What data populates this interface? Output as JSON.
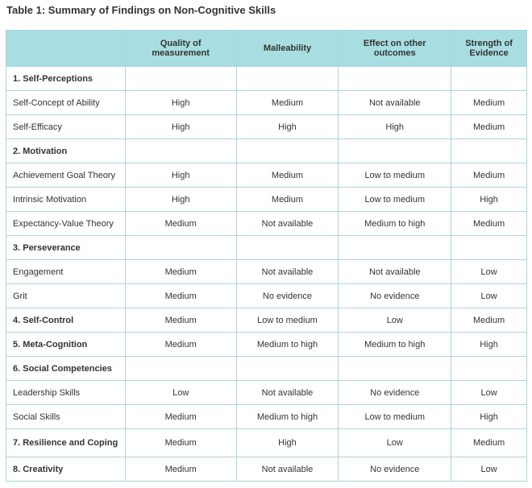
{
  "title": "Table 1: Summary of Findings on Non-Cognitive Skills",
  "table": {
    "header": [
      "Quality of measurement",
      "Malleability",
      "Effect on other outcomes",
      "Strength of Evidence"
    ],
    "rows": [
      {
        "label": "1. Self-Perceptions",
        "section": true
      },
      {
        "label": "Self-Concept of Ability",
        "values": [
          "High",
          "Medium",
          "Not available",
          "Medium"
        ]
      },
      {
        "label": "Self-Efficacy",
        "values": [
          "High",
          "High",
          "High",
          "Medium"
        ]
      },
      {
        "label": "2. Motivation",
        "section": true
      },
      {
        "label": "Achievement Goal Theory",
        "values": [
          "High",
          "Medium",
          "Low to medium",
          "Medium"
        ]
      },
      {
        "label": "Intrinsic Motivation",
        "values": [
          "High",
          "Medium",
          "Low to medium",
          "High"
        ]
      },
      {
        "label": "Expectancy-Value Theory",
        "values": [
          "Medium",
          "Not available",
          "Medium to high",
          "Medium"
        ]
      },
      {
        "label": "3. Perseverance",
        "section": true
      },
      {
        "label": "Engagement",
        "values": [
          "Medium",
          "Not available",
          "Not available",
          "Low"
        ]
      },
      {
        "label": "Grit",
        "values": [
          "Medium",
          "No evidence",
          "No evidence",
          "Low"
        ]
      },
      {
        "label": "4. Self-Control",
        "section": true,
        "values": [
          "Medium",
          "Low to medium",
          "Low",
          "Medium"
        ]
      },
      {
        "label": "5. Meta-Cognition",
        "section": true,
        "values": [
          "Medium",
          "Medium to high",
          "Medium to high",
          "High"
        ]
      },
      {
        "label": "6. Social Competencies",
        "section": true
      },
      {
        "label": "Leadership Skills",
        "values": [
          "Low",
          "Not available",
          "No evidence",
          "Low"
        ]
      },
      {
        "label": "Social Skills",
        "values": [
          "Medium",
          "Medium to high",
          "Low to medium",
          "High"
        ]
      },
      {
        "label": "7. Resilience and Coping",
        "section": true,
        "values": [
          "Medium",
          "High",
          "Low",
          "Medium"
        ]
      },
      {
        "label": "8. Creativity",
        "section": true,
        "values": [
          "Medium",
          "Not available",
          "No evidence",
          "Low"
        ]
      }
    ]
  }
}
